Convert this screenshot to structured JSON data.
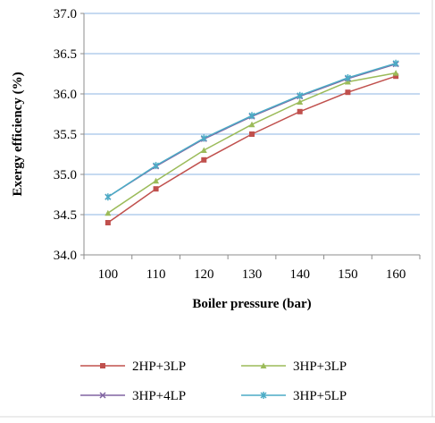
{
  "chart_data": {
    "type": "line",
    "title": "",
    "xlabel": "Boiler pressure (bar)",
    "ylabel": "Exergy efficiency (%)",
    "x": [
      100,
      110,
      120,
      130,
      140,
      150,
      160
    ],
    "xlim": [
      95,
      165
    ],
    "ylim": [
      34.0,
      37.0
    ],
    "yticks": [
      "34.0",
      "34.5",
      "35.0",
      "35.5",
      "36.0",
      "36.5",
      "37.0"
    ],
    "xticks": [
      "100",
      "110",
      "120",
      "130",
      "140",
      "150",
      "160"
    ],
    "grid": "horizontal",
    "legend_position": "bottom",
    "series": [
      {
        "name": "2HP+3LP",
        "color": "#c0504d",
        "marker": "square",
        "values": [
          34.4,
          34.82,
          35.18,
          35.5,
          35.78,
          36.02,
          36.22
        ]
      },
      {
        "name": "3HP+3LP",
        "color": "#9bbb59",
        "marker": "triangle",
        "values": [
          34.52,
          34.92,
          35.3,
          35.62,
          35.9,
          36.15,
          36.26
        ]
      },
      {
        "name": "3HP+4LP",
        "color": "#8064a2",
        "marker": "x",
        "values": [
          34.72,
          35.1,
          35.44,
          35.72,
          35.97,
          36.19,
          36.37
        ]
      },
      {
        "name": "3HP+5LP",
        "color": "#4bacc6",
        "marker": "star",
        "values": [
          34.72,
          35.11,
          35.45,
          35.73,
          35.98,
          36.2,
          36.38
        ]
      }
    ]
  }
}
